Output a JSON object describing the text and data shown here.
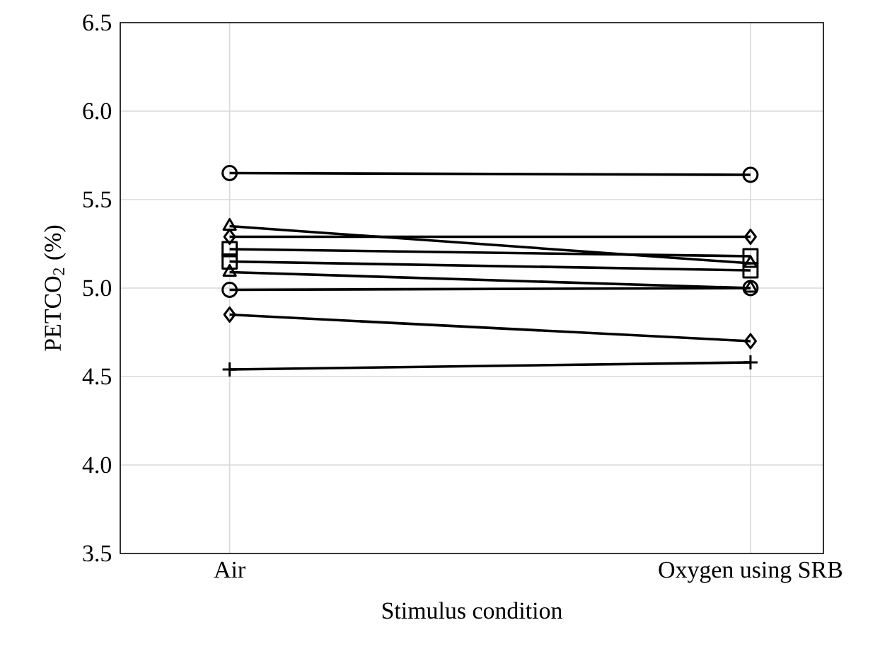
{
  "chart_data": {
    "type": "line",
    "xlabel": "Stimulus condition",
    "ylabel": "PETCO$_{2}$ (%)",
    "categories": [
      "Air",
      "Oxygen using SRB"
    ],
    "series": [
      {
        "color": "#000000",
        "marker": "circle",
        "values": [
          5.65,
          5.64
        ]
      },
      {
        "color": "#000000",
        "marker": "triangle",
        "values": [
          5.35,
          5.14
        ]
      },
      {
        "color": "#000000",
        "marker": "diamond",
        "values": [
          5.29,
          5.29
        ]
      },
      {
        "color": "#000000",
        "marker": "square",
        "values": [
          5.22,
          5.18
        ]
      },
      {
        "color": "#000000",
        "marker": "square",
        "values": [
          5.15,
          5.1
        ]
      },
      {
        "color": "#000000",
        "marker": "triangle",
        "values": [
          5.09,
          5.0
        ]
      },
      {
        "color": "#000000",
        "marker": "circle",
        "values": [
          4.99,
          5.0
        ]
      },
      {
        "color": "#000000",
        "marker": "diamond",
        "values": [
          4.85,
          4.7
        ]
      },
      {
        "color": "#000000",
        "marker": "cross",
        "values": [
          4.54,
          4.58
        ]
      }
    ],
    "ylim": [
      3.5,
      6.5
    ],
    "yticks": [
      {
        "value": 3.5,
        "label": "3.5"
      },
      {
        "value": 4.0,
        "label": "4.0"
      },
      {
        "value": 4.5,
        "label": "4.5"
      },
      {
        "value": 5.0,
        "label": "5.0"
      },
      {
        "value": 5.5,
        "label": "5.5"
      },
      {
        "value": 6.0,
        "label": "6.0"
      },
      {
        "value": 6.5,
        "label": "6.5"
      }
    ],
    "grid": true
  }
}
